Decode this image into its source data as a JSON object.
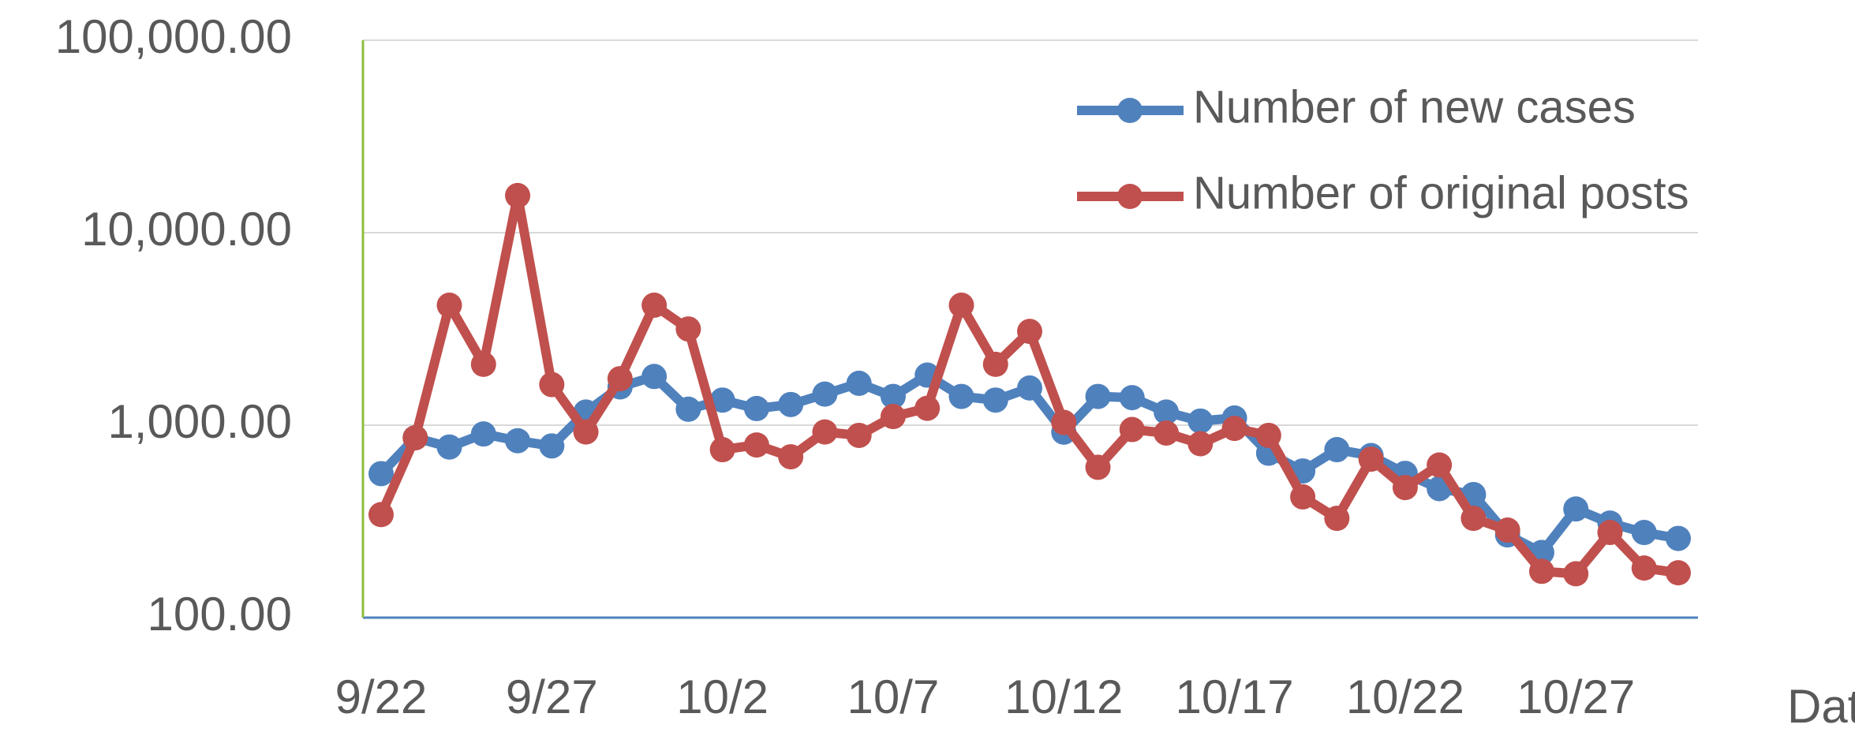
{
  "chart_data": {
    "type": "line",
    "x_label": "Date",
    "categories": [
      "9/22",
      null,
      null,
      null,
      null,
      "9/27",
      null,
      null,
      null,
      null,
      "10/2",
      null,
      null,
      null,
      null,
      "10/7",
      null,
      null,
      null,
      null,
      "10/12",
      null,
      null,
      null,
      null,
      "10/17",
      null,
      null,
      null,
      null,
      "10/22",
      null,
      null,
      null,
      null,
      "10/27",
      null,
      null,
      null
    ],
    "series": [
      {
        "name": "Number of new cases",
        "color": "#4f81bd",
        "values": [
          560,
          860,
          770,
          900,
          830,
          780,
          1170,
          1580,
          1790,
          1210,
          1350,
          1220,
          1280,
          1450,
          1650,
          1410,
          1820,
          1410,
          1350,
          1560,
          920,
          1410,
          1390,
          1170,
          1050,
          1090,
          715,
          578,
          746,
          695,
          562,
          468,
          436,
          269,
          218,
          367,
          310,
          277,
          258
        ]
      },
      {
        "name": "Number of original posts",
        "color": "#c0504d",
        "values": [
          343,
          860,
          4200,
          2070,
          15600,
          1625,
          922,
          1744,
          4200,
          3160,
          746,
          789,
          685,
          922,
          885,
          1109,
          1224,
          4200,
          2070,
          3070,
          1033,
          604,
          949,
          910,
          801,
          962,
          885,
          424,
          328,
          666,
          474,
          621,
          328,
          285,
          174,
          169,
          277,
          181,
          171
        ]
      }
    ],
    "ylim": [
      100,
      100000
    ],
    "yticks": [
      {
        "value": 100,
        "label": "100.00"
      },
      {
        "value": 1000,
        "label": "1,000.00"
      },
      {
        "value": 10000,
        "label": "10,000.00"
      },
      {
        "value": 100000,
        "label": "100,000.00"
      }
    ],
    "log_scale": true,
    "grid": true,
    "legend": "upper right"
  }
}
